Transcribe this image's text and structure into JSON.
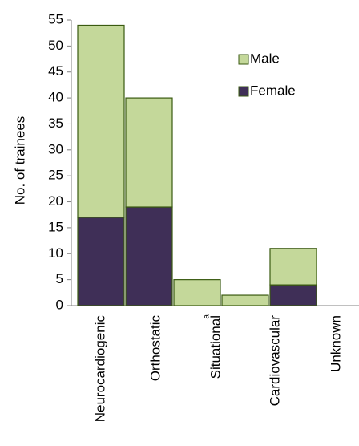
{
  "chart_data": {
    "type": "bar",
    "stacked": true,
    "categories": [
      "Neurocardiogenic",
      "Orthostatic",
      "Situational",
      "Cardiovascular",
      "Unknown"
    ],
    "series": [
      {
        "name": "Female",
        "values": [
          17,
          19,
          0,
          0,
          4
        ],
        "color": "#3f2f57"
      },
      {
        "name": "Male",
        "values": [
          37,
          21,
          5,
          2,
          7
        ],
        "color": "#c4d89a"
      }
    ],
    "ylabel": "No. of trainees",
    "ylim": [
      0,
      55
    ],
    "yticks": [
      0,
      5,
      10,
      15,
      20,
      25,
      30,
      35,
      40,
      45,
      50,
      55
    ],
    "legend_position": "top-right",
    "legend_order": [
      "Male",
      "Female"
    ],
    "grid": false,
    "edge_color": "#3a5a10",
    "annotations": [
      {
        "category": "Situational",
        "text": "a"
      }
    ]
  }
}
